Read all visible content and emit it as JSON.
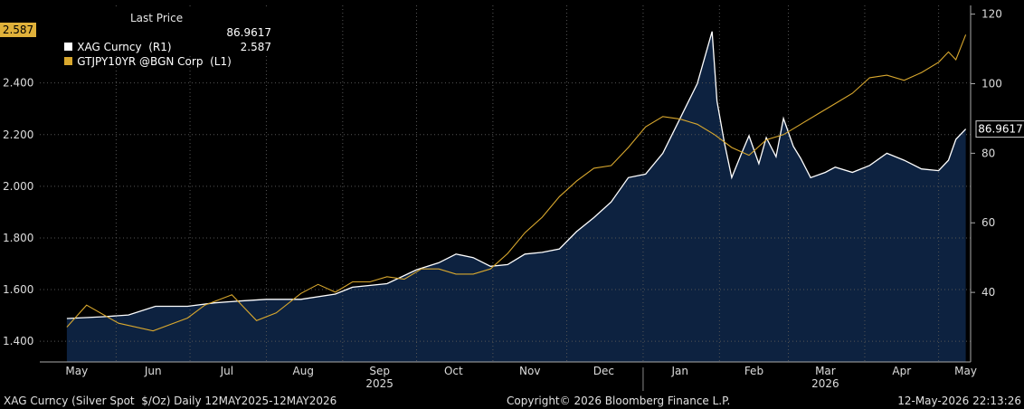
{
  "chart_data": {
    "type": "area",
    "header": "Last Price",
    "x_tick_labels": [
      "May",
      "Jun",
      "Jul",
      "Aug",
      "Sep",
      "Oct",
      "Nov",
      "Dec",
      "Jan",
      "Feb",
      "Mar",
      "Apr",
      "May"
    ],
    "year_labels": [
      "2025",
      "2026"
    ],
    "left_axis": {
      "ticks": [
        "1.400",
        "1.600",
        "1.800",
        "2.000",
        "2.200",
        "2.400"
      ],
      "ylim": [
        1.32,
        2.7
      ]
    },
    "right_axis": {
      "ticks": [
        "40",
        "60",
        "80",
        "100",
        "120"
      ],
      "ylim": [
        20,
        122.5
      ]
    },
    "grid": true,
    "legend_position": "top-left",
    "series": [
      {
        "name": "XAG Curncy  (R1)",
        "axis": "right",
        "style": "filled-area",
        "line_color": "#ffffff",
        "fill_color": "#0d2240",
        "last_value": "86.9617",
        "x": [
          "2025-05-12",
          "2025-05-27",
          "2025-06-06",
          "2025-06-17",
          "2025-06-30",
          "2025-07-11",
          "2025-07-21",
          "2025-08-01",
          "2025-08-15",
          "2025-08-29",
          "2025-09-05",
          "2025-09-19",
          "2025-10-01",
          "2025-10-10",
          "2025-10-17",
          "2025-10-24",
          "2025-10-31",
          "2025-11-07",
          "2025-11-14",
          "2025-11-21",
          "2025-11-28",
          "2025-12-05",
          "2025-12-12",
          "2025-12-19",
          "2025-12-26",
          "2026-01-02",
          "2026-01-09",
          "2026-01-16",
          "2026-01-23",
          "2026-01-29",
          "2026-01-31",
          "2026-02-03",
          "2026-02-06",
          "2026-02-10",
          "2026-02-13",
          "2026-02-17",
          "2026-02-20",
          "2026-02-24",
          "2026-02-27",
          "2026-03-03",
          "2026-03-06",
          "2026-03-10",
          "2026-03-16",
          "2026-03-20",
          "2026-03-27",
          "2026-04-03",
          "2026-04-10",
          "2026-04-17",
          "2026-04-24",
          "2026-05-01",
          "2026-05-05",
          "2026-05-08",
          "2026-05-12"
        ],
        "values": [
          32.5,
          33.0,
          33.5,
          36.0,
          36.0,
          37.0,
          37.5,
          38.0,
          38.0,
          39.5,
          41.5,
          42.5,
          46.5,
          48.5,
          51.0,
          50.0,
          47.5,
          48.0,
          51.0,
          51.5,
          52.5,
          57.5,
          61.5,
          66.0,
          73.0,
          74.0,
          80.0,
          90.0,
          100.0,
          115.0,
          95.0,
          83.0,
          73.0,
          80.0,
          85.0,
          77.0,
          84.5,
          79.0,
          90.0,
          82.0,
          78.5,
          73.0,
          74.5,
          76.0,
          74.5,
          76.5,
          80.0,
          78.0,
          75.5,
          75.0,
          78.0,
          84.0,
          86.9617
        ]
      },
      {
        "name": "GTJPY10YR @BGN Corp  (L1)",
        "axis": "left",
        "style": "line",
        "line_color": "#d9a82e",
        "last_value": "2.587",
        "x": [
          "2025-05-12",
          "2025-05-20",
          "2025-06-02",
          "2025-06-16",
          "2025-06-30",
          "2025-07-07",
          "2025-07-18",
          "2025-07-28",
          "2025-08-05",
          "2025-08-15",
          "2025-08-22",
          "2025-08-29",
          "2025-09-05",
          "2025-09-12",
          "2025-09-19",
          "2025-09-26",
          "2025-10-03",
          "2025-10-10",
          "2025-10-17",
          "2025-10-24",
          "2025-10-31",
          "2025-11-07",
          "2025-11-14",
          "2025-11-21",
          "2025-11-28",
          "2025-12-05",
          "2025-12-12",
          "2025-12-19",
          "2025-12-26",
          "2026-01-02",
          "2026-01-09",
          "2026-01-16",
          "2026-01-23",
          "2026-01-30",
          "2026-02-06",
          "2026-02-13",
          "2026-02-20",
          "2026-02-27",
          "2026-03-06",
          "2026-03-13",
          "2026-03-20",
          "2026-03-27",
          "2026-04-03",
          "2026-04-10",
          "2026-04-17",
          "2026-04-24",
          "2026-05-01",
          "2026-05-05",
          "2026-05-08",
          "2026-05-12"
        ],
        "values": [
          1.455,
          1.54,
          1.47,
          1.44,
          1.49,
          1.54,
          1.58,
          1.48,
          1.51,
          1.585,
          1.62,
          1.59,
          1.63,
          1.63,
          1.65,
          1.64,
          1.68,
          1.68,
          1.66,
          1.66,
          1.68,
          1.74,
          1.82,
          1.88,
          1.96,
          2.02,
          2.07,
          2.08,
          2.15,
          2.23,
          2.27,
          2.26,
          2.24,
          2.2,
          2.15,
          2.12,
          2.18,
          2.2,
          2.24,
          2.28,
          2.32,
          2.36,
          2.42,
          2.43,
          2.41,
          2.44,
          2.48,
          2.52,
          2.49,
          2.587
        ]
      }
    ]
  },
  "footer": {
    "left": "XAG Curncy (Silver Spot  $/Oz) Daily 12MAY2025-12MAY2026",
    "center": "Copyright© 2026 Bloomberg Finance L.P.",
    "right": "12-May-2026 22:13:26"
  }
}
